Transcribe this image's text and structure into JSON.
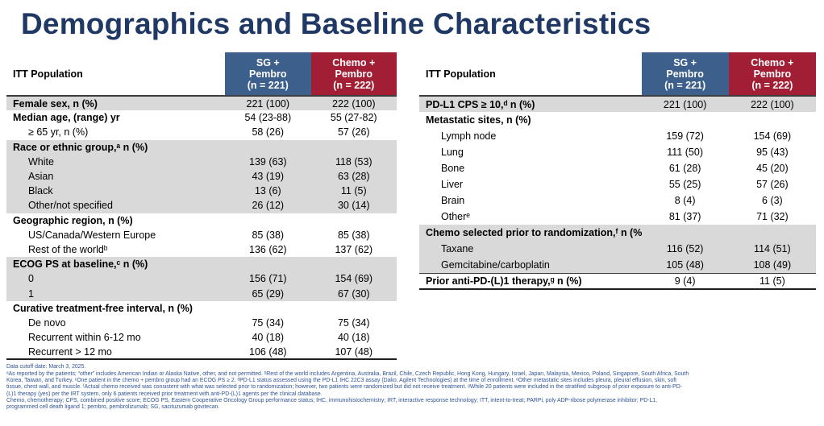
{
  "title": "Demographics and Baseline Characteristics",
  "colors": {
    "title_navy": "#1F3864",
    "sg_pembro_blue": "#3D5F8C",
    "chemo_pembro_red": "#A21E35",
    "row_band_gray": "#D9D9D9",
    "footnote_blue": "#2F5496"
  },
  "tables": [
    {
      "header": {
        "population": "ITT Population",
        "col1": "SG +\nPembro\n(n = 221)",
        "col2": "Chemo +\nPembro\n(n = 222)"
      },
      "rows": [
        {
          "label": "Female sex, n (%)",
          "bold": true,
          "band": "gray",
          "v1": "221 (100)",
          "v2": "222 (100)"
        },
        {
          "label": "Median age, (range) yr",
          "bold": true,
          "band": "white",
          "v1": "54 (23-88)",
          "v2": "55 (27-82)"
        },
        {
          "label": "≥ 65 yr, n (%)",
          "indent": true,
          "band": "white",
          "v1": "58 (26)",
          "v2": "57 (26)"
        },
        {
          "label": "Race or ethnic group,ᵃ n (%)",
          "bold": true,
          "band": "gray",
          "v1": "",
          "v2": ""
        },
        {
          "label": "White",
          "indent": true,
          "band": "gray",
          "v1": "139 (63)",
          "v2": "118 (53)"
        },
        {
          "label": "Asian",
          "indent": true,
          "band": "gray",
          "v1": "43 (19)",
          "v2": "63 (28)"
        },
        {
          "label": "Black",
          "indent": true,
          "band": "gray",
          "v1": "13 (6)",
          "v2": "11 (5)"
        },
        {
          "label": "Other/not specified",
          "indent": true,
          "band": "gray",
          "v1": "26 (12)",
          "v2": "30 (14)"
        },
        {
          "label": "Geographic region, n (%)",
          "bold": true,
          "band": "white",
          "v1": "",
          "v2": ""
        },
        {
          "label": "US/Canada/Western Europe",
          "indent": true,
          "band": "white",
          "v1": "85 (38)",
          "v2": "85 (38)"
        },
        {
          "label": "Rest of the worldᵇ",
          "indent": true,
          "band": "white",
          "v1": "136 (62)",
          "v2": "137 (62)"
        },
        {
          "label": "ECOG PS at baseline,ᶜ n (%)",
          "bold": true,
          "band": "gray",
          "v1": "",
          "v2": ""
        },
        {
          "label": "0",
          "indent": true,
          "band": "gray",
          "v1": "156 (71)",
          "v2": "154 (69)"
        },
        {
          "label": "1",
          "indent": true,
          "band": "gray",
          "v1": "65 (29)",
          "v2": "67 (30)"
        },
        {
          "label": "Curative treatment-free interval, n (%)",
          "bold": true,
          "band": "white",
          "v1": "",
          "v2": ""
        },
        {
          "label": "De novo",
          "indent": true,
          "band": "white",
          "v1": "75 (34)",
          "v2": "75 (34)"
        },
        {
          "label": "Recurrent within 6-12 mo",
          "indent": true,
          "band": "white",
          "v1": "40 (18)",
          "v2": "40 (18)"
        },
        {
          "label": "Recurrent > 12 mo",
          "indent": true,
          "band": "white",
          "v1": "106 (48)",
          "v2": "107 (48)"
        }
      ]
    },
    {
      "header": {
        "population": "ITT Population",
        "col1": "SG +\nPembro\n(n = 221)",
        "col2": "Chemo +\nPembro\n(n = 222)"
      },
      "rows": [
        {
          "label": "PD-L1 CPS ≥ 10,ᵈ n (%)",
          "bold": true,
          "band": "gray",
          "v1": "221 (100)",
          "v2": "222 (100)"
        },
        {
          "label": "Metastatic sites, n (%)",
          "bold": true,
          "band": "white",
          "v1": "",
          "v2": ""
        },
        {
          "label": "Lymph node",
          "indent": true,
          "band": "white",
          "v1": "159 (72)",
          "v2": "154 (69)"
        },
        {
          "label": "Lung",
          "indent": true,
          "band": "white",
          "v1": "111 (50)",
          "v2": "95 (43)"
        },
        {
          "label": "Bone",
          "indent": true,
          "band": "white",
          "v1": "61 (28)",
          "v2": "45 (20)"
        },
        {
          "label": "Liver",
          "indent": true,
          "band": "white",
          "v1": "55 (25)",
          "v2": "57 (26)"
        },
        {
          "label": "Brain",
          "indent": true,
          "band": "white",
          "v1": "8 (4)",
          "v2": "6 (3)"
        },
        {
          "label": "Otherᵉ",
          "indent": true,
          "band": "white",
          "v1": "81 (37)",
          "v2": "71 (32)"
        },
        {
          "label": "Chemo selected prior to randomization,ᶠ n (%)",
          "bold": true,
          "band": "gray",
          "v1": "",
          "v2": ""
        },
        {
          "label": "Taxane",
          "indent": true,
          "band": "gray",
          "v1": "116 (52)",
          "v2": "114 (51)"
        },
        {
          "label": "Gemcitabine/carboplatin",
          "indent": true,
          "band": "gray",
          "v1": "105 (48)",
          "v2": "108 (49)"
        },
        {
          "label": "Prior anti-PD-(L)1 therapy,ᵍ n (%)",
          "bold": true,
          "band": "white",
          "topline": true,
          "v1": "9 (4)",
          "v2": "11 (5)"
        }
      ]
    }
  ],
  "footnotes": [
    "Data cutoff date: March 3, 2025.",
    "ᵃAs reported by the patients; “other” includes American Indian or Alaska Native, other, and not permitted. ᵇRest of the world includes Argentina, Australia, Brazil, Chile, Czech Republic, Hong Kong, Hungary, Israel, Japan, Malaysia, Mexico, Poland, Singapore, South Africa, South",
    "Korea, Taiwan, and Turkey. ᶜOne patient in the chemo + pembro group had an ECOG PS ≥ 2. ᵈPD-L1 status assessed using the PD-L1 IHC 22C3 assay (Dako, Agilent Technologies) at the time of enrollment. ᵉOther metastatic sites includes pleura, pleural effusion, skin, soft",
    "tissue, chest wall, and muscle. ᶠActual chemo received was consistent with what was selected prior to randomization; however, two patients were randomized but did not receive treatment. ᵍWhile 20 patients were included in the stratified subgroup of prior exposure to anti-PD-",
    "(L)1 therapy (yes) per the IRT system, only 6 patients received prior treatment with anti-PD-(L)1 agents per the clinical database.",
    "Chemo, chemotherapy; CPS, combined positive score; ECOG PS, Eastern Cooperative Oncology Group performance status; IHC, immunohistochemistry; IRT, interactive response technology; ITT, intent-to-treat; PARPi, poly ADP-ribose polymerase inhibitor; PD-L1,",
    "programmed cell death ligand 1; pembro, pembrolizumab; SG, sacituzumab govitecan."
  ]
}
